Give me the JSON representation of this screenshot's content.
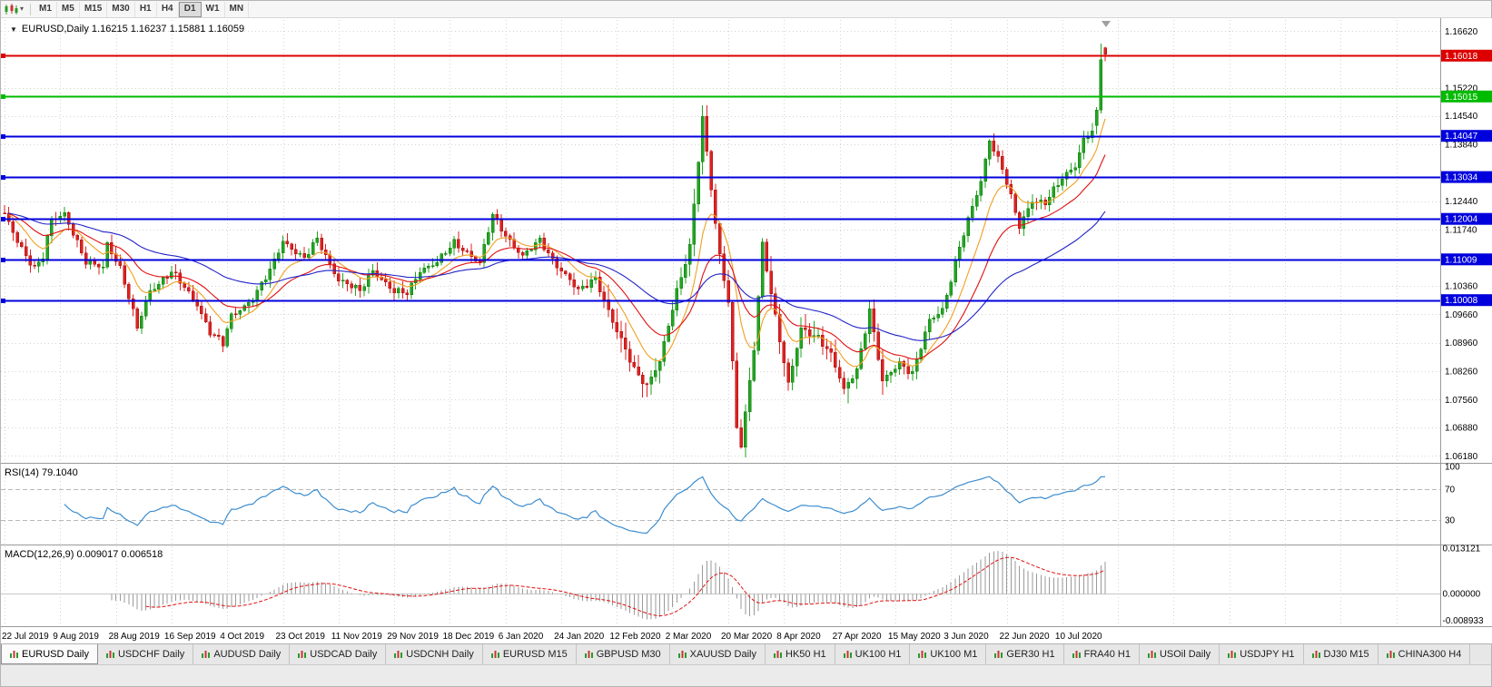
{
  "toolbar": {
    "timeframes": [
      "M1",
      "M5",
      "M15",
      "M30",
      "H1",
      "H4",
      "D1",
      "W1",
      "MN"
    ],
    "active_timeframe": "D1"
  },
  "icons": {
    "collapse_triangle": "▼",
    "dropdown_caret": "▾"
  },
  "tabs": [
    "EURUSD Daily",
    "USDCHF Daily",
    "AUDUSD Daily",
    "USDCAD Daily",
    "USDCNH Daily",
    "EURUSD M15",
    "GBPUSD M30",
    "XAUUSD Daily",
    "HK50 H1",
    "UK100 H1",
    "UK100 M1",
    "GER30 H1",
    "FRA40 H1",
    "USOil Daily",
    "USDJPY H1",
    "DJ30 M15",
    "CHINA300 H4"
  ],
  "active_tab": "EURUSD Daily",
  "chart_data": {
    "type": "candlestick",
    "symbol": "EURUSD",
    "timeframe": "Daily",
    "info_line": "EURUSD,Daily 1.16215 1.16237 1.15881 1.16059",
    "current_bar": {
      "open": 1.16215,
      "high": 1.16237,
      "low": 1.15881,
      "close": 1.16059
    },
    "colors": {
      "bull": "#22a522",
      "bull_stroke": "#0e7a0e",
      "bear": "#dd2222",
      "bear_stroke": "#a80f0f",
      "grid": "#d4d4d4",
      "ma_fast": "#f0a020",
      "ma_medium": "#e01010",
      "ma_slow": "#2222c8",
      "rsi": "#3c8dcf",
      "macd_hist": "#9a9a9a",
      "macd_signal": "#e01010"
    },
    "y_axis": {
      "range": [
        1.0603,
        1.1694
      ],
      "ticks": [
        1.1662,
        1.1522,
        1.1454,
        1.1384,
        1.1244,
        1.1174,
        1.1036,
        1.0966,
        1.0896,
        1.0826,
        1.0756,
        1.0688,
        1.0618
      ]
    },
    "x_labels": [
      "22 Jul 2019",
      "9 Aug 2019",
      "28 Aug 2019",
      "16 Sep 2019",
      "4 Oct 2019",
      "23 Oct 2019",
      "11 Nov 2019",
      "29 Nov 2019",
      "18 Dec 2019",
      "6 Jan 2020",
      "24 Jan 2020",
      "12 Feb 2020",
      "2 Mar 2020",
      "20 Mar 2020",
      "8 Apr 2020",
      "27 Apr 2020",
      "15 May 2020",
      "3 Jun 2020",
      "22 Jun 2020",
      "10 Jul 2020"
    ],
    "x_label_step": 13,
    "hlines": [
      {
        "price": 1.16018,
        "color": "#dd0000",
        "width": 2
      },
      {
        "price": 1.15015,
        "color": "#00bb00",
        "width": 2
      },
      {
        "price": 1.14047,
        "color": "#0000dd",
        "width": 2
      },
      {
        "price": 1.13034,
        "color": "#0000dd",
        "width": 2
      },
      {
        "price": 1.12004,
        "color": "#0000dd",
        "width": 2
      },
      {
        "price": 1.11009,
        "color": "#0000dd",
        "width": 2
      },
      {
        "price": 1.10008,
        "color": "#0000dd",
        "width": 2
      }
    ],
    "candles": {
      "count": 258,
      "first_open": 1.1215,
      "noise_amplitude": 0.0011,
      "close_waypoints": [
        [
          0,
          1.121
        ],
        [
          3,
          1.1148
        ],
        [
          7,
          1.1078
        ],
        [
          9,
          1.1105
        ],
        [
          11,
          1.1198
        ],
        [
          14,
          1.1215
        ],
        [
          16,
          1.1168
        ],
        [
          19,
          1.1092
        ],
        [
          23,
          1.1082
        ],
        [
          24,
          1.1142
        ],
        [
          27,
          1.108
        ],
        [
          31,
          1.0932
        ],
        [
          34,
          1.1025
        ],
        [
          39,
          1.107
        ],
        [
          42,
          1.1032
        ],
        [
          45,
          1.0992
        ],
        [
          48,
          1.0922
        ],
        [
          51,
          1.0892
        ],
        [
          53,
          1.0962
        ],
        [
          58,
          1.1005
        ],
        [
          62,
          1.1072
        ],
        [
          65,
          1.1148
        ],
        [
          70,
          1.1102
        ],
        [
          73,
          1.115
        ],
        [
          78,
          1.1052
        ],
        [
          83,
          1.1022
        ],
        [
          86,
          1.1076
        ],
        [
          91,
          1.102
        ],
        [
          94,
          1.1018
        ],
        [
          97,
          1.1076
        ],
        [
          101,
          1.1092
        ],
        [
          105,
          1.1143
        ],
        [
          108,
          1.112
        ],
        [
          111,
          1.109
        ],
        [
          114,
          1.121
        ],
        [
          117,
          1.1162
        ],
        [
          121,
          1.1107
        ],
        [
          125,
          1.1148
        ],
        [
          129,
          1.1087
        ],
        [
          134,
          1.1022
        ],
        [
          138,
          1.1058
        ],
        [
          142,
          1.0946
        ],
        [
          147,
          1.0832
        ],
        [
          150,
          1.0792
        ],
        [
          153,
          1.0848
        ],
        [
          157,
          1.1024
        ],
        [
          160,
          1.1134
        ],
        [
          163,
          1.1448
        ],
        [
          165,
          1.1272
        ],
        [
          167,
          1.1108
        ],
        [
          169,
          1.1002
        ],
        [
          171,
          1.0692
        ],
        [
          172,
          1.0642
        ],
        [
          175,
          1.0878
        ],
        [
          177,
          1.1138
        ],
        [
          180,
          1.0962
        ],
        [
          183,
          1.0792
        ],
        [
          186,
          1.0928
        ],
        [
          190,
          1.0912
        ],
        [
          193,
          1.0866
        ],
        [
          196,
          1.0778
        ],
        [
          199,
          1.0832
        ],
        [
          202,
          1.0978
        ],
        [
          205,
          1.0798
        ],
        [
          209,
          1.0848
        ],
        [
          212,
          1.0822
        ],
        [
          216,
          1.0948
        ],
        [
          219,
          1.0978
        ],
        [
          223,
          1.1132
        ],
        [
          228,
          1.1292
        ],
        [
          230,
          1.1398
        ],
        [
          233,
          1.1326
        ],
        [
          237,
          1.1178
        ],
        [
          240,
          1.1248
        ],
        [
          243,
          1.1242
        ],
        [
          247,
          1.1298
        ],
        [
          250,
          1.1332
        ],
        [
          252,
          1.1398
        ],
        [
          254,
          1.1418
        ]
      ],
      "tail_ohlc": [
        [
          1.143,
          1.1475,
          1.1408,
          1.1468
        ],
        [
          1.1468,
          1.1632,
          1.146,
          1.1592
        ],
        [
          1.16215,
          1.16237,
          1.15881,
          1.16059
        ]
      ]
    },
    "moving_averages": [
      {
        "name": "fast",
        "period": 10
      },
      {
        "name": "medium",
        "period": 22
      },
      {
        "name": "slow",
        "period": 55
      }
    ],
    "rsi_panel": {
      "label": "RSI(14) 79.1040",
      "period": 14,
      "value": 79.104,
      "levels": [
        70,
        30
      ],
      "ticks": [
        100,
        70,
        30
      ],
      "range": [
        0,
        100
      ]
    },
    "macd_panel": {
      "label": "MACD(12,26,9) 0.009017 0.006518",
      "fast": 12,
      "slow": 26,
      "signal": 9,
      "macd_value": 0.009017,
      "signal_value": 0.006518,
      "ticks": [
        0.013121,
        0.0,
        -0.008933
      ],
      "range": [
        0.013121,
        -0.008933
      ]
    }
  }
}
